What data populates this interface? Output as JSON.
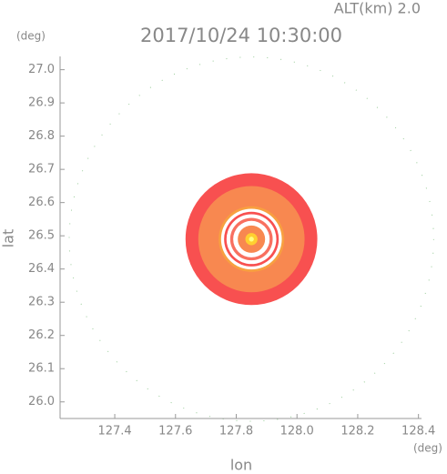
{
  "chart_data": {
    "type": "rings",
    "title": "2017/10/24 10:30:00",
    "subtitle": "ALT(km) 2.0",
    "x_label": "lon",
    "y_label": "lat",
    "x_unit": "(deg)",
    "y_unit": "(deg)",
    "xlim": [
      127.22,
      128.41
    ],
    "ylim": [
      25.95,
      27.04
    ],
    "xticks": [
      127.4,
      127.6,
      127.8,
      {
        "value": 128,
        "label": "128.0"
      },
      128.2,
      128.4
    ],
    "yticks": [
      {
        "value": 26,
        "label": "26.0"
      },
      26.1,
      26.2,
      26.3,
      26.4,
      26.5,
      26.6,
      26.7,
      26.8,
      26.9,
      {
        "value": 27,
        "label": "27.0"
      }
    ],
    "center": [
      127.85,
      26.49
    ],
    "range_ring": {
      "radius": 0.6,
      "color": "#9c9"
    },
    "rings": [
      {
        "radius": 0.217,
        "color": "#f85050"
      },
      {
        "radius": 0.175,
        "color": "#f88850"
      },
      {
        "radius": 0.108,
        "color": "#f8a040"
      },
      {
        "radius": 0.1,
        "color": "#ffffff"
      },
      {
        "radius": 0.09,
        "color": "#f85050"
      },
      {
        "radius": 0.082,
        "color": "#ffffff"
      },
      {
        "radius": 0.07,
        "color": "#f87060"
      },
      {
        "radius": 0.06,
        "color": "#ffffff"
      },
      {
        "radius": 0.045,
        "color": "#f88850"
      },
      {
        "radius": 0.02,
        "color": "#ffd030"
      },
      {
        "radius": 0.008,
        "color": "#ffff80"
      }
    ]
  }
}
